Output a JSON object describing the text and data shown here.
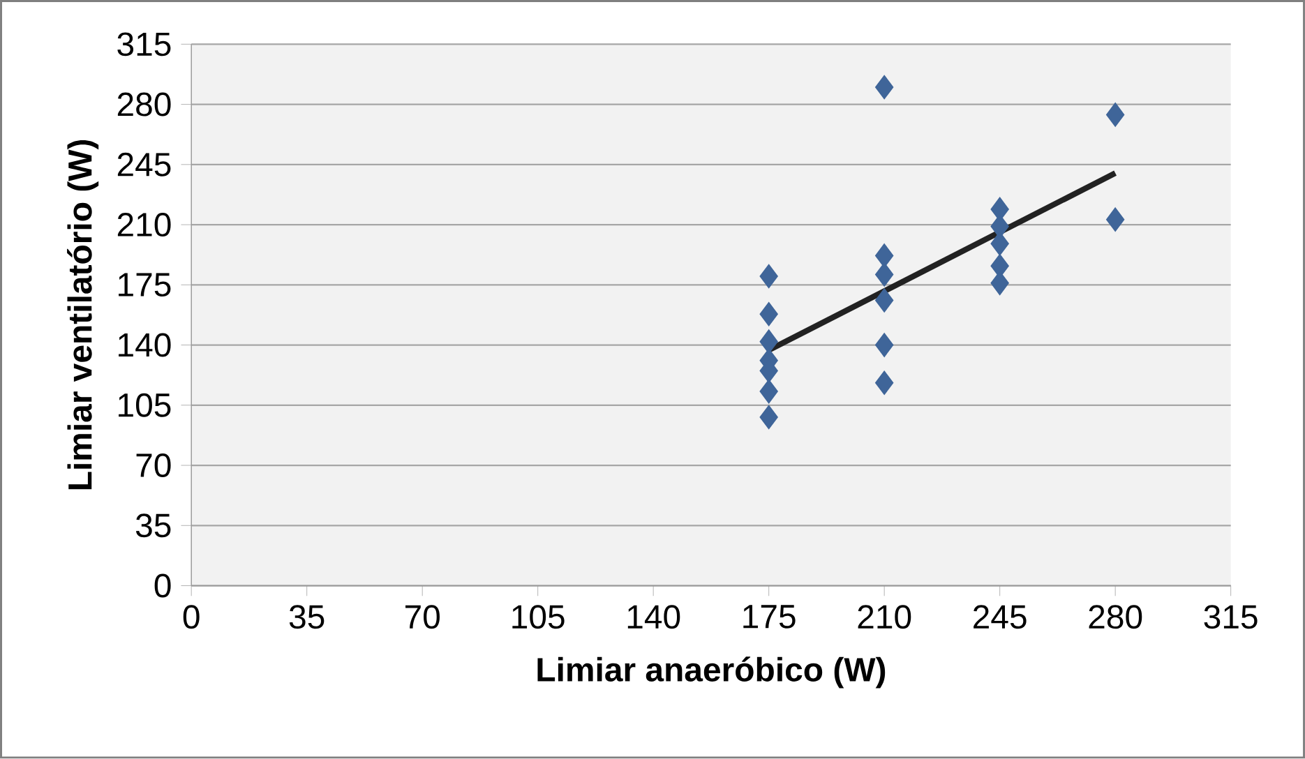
{
  "chart_data": {
    "type": "scatter",
    "xlabel": "Limiar anaeróbico (W)",
    "ylabel": "Limiar ventilatório (W)",
    "xlim": [
      0,
      315
    ],
    "ylim": [
      0,
      315
    ],
    "xticks": [
      0,
      35,
      70,
      105,
      140,
      175,
      210,
      245,
      280,
      315
    ],
    "yticks": [
      0,
      35,
      70,
      105,
      140,
      175,
      210,
      245,
      280,
      315
    ],
    "grid": "y",
    "marker": "diamond",
    "series": [
      {
        "color": "#3f6599",
        "x": [
          175,
          175,
          175,
          175,
          175,
          175,
          175,
          210,
          210,
          210,
          210,
          210,
          210,
          245,
          245,
          245,
          245,
          245,
          280,
          280
        ],
        "values": [
          180,
          158,
          142,
          131,
          125,
          113,
          98,
          290,
          192,
          181,
          166,
          140,
          118,
          219,
          209,
          199,
          186,
          176,
          274,
          213
        ]
      },
      {
        "type": "line",
        "color": "#222222",
        "marker": "none",
        "x": [
          175,
          280
        ],
        "values": [
          137,
          240
        ]
      }
    ]
  }
}
